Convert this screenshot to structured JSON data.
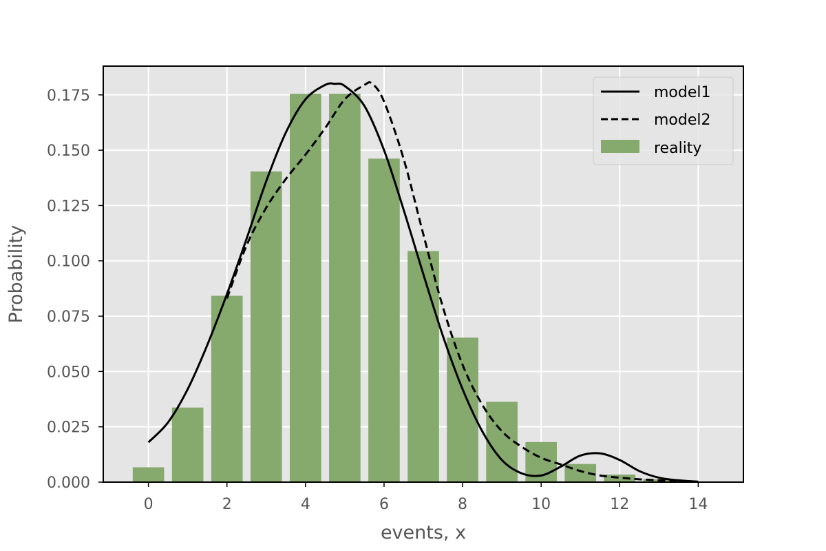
{
  "chart_data": {
    "type": "bar",
    "xlabel": "events, x",
    "ylabel": "Probability",
    "xlim": [
      -1.15,
      15.15
    ],
    "ylim": [
      0,
      0.188
    ],
    "xticks": [
      0,
      2,
      4,
      6,
      8,
      10,
      12,
      14
    ],
    "yticks": [
      0.0,
      0.025,
      0.05,
      0.075,
      0.1,
      0.125,
      0.15,
      0.175
    ],
    "grid": true,
    "legend_position": "top-right",
    "colors": {
      "background": "#e5e5e5",
      "bars": "#86a96e",
      "lines": "#000000",
      "grid": "#ffffff"
    },
    "bars": {
      "name": "reality",
      "x": [
        0,
        1,
        2,
        3,
        4,
        5,
        6,
        7,
        8,
        9,
        10,
        11,
        12,
        13
      ],
      "values": [
        0.0067,
        0.0337,
        0.0842,
        0.1404,
        0.1755,
        0.1755,
        0.1462,
        0.1044,
        0.0653,
        0.0363,
        0.0181,
        0.0082,
        0.0034,
        0.0013
      ]
    },
    "series": [
      {
        "name": "model1",
        "style": "solid",
        "x": [
          0,
          0.5,
          1,
          1.5,
          2,
          2.5,
          3,
          3.5,
          4,
          4.5,
          4.75,
          5,
          5.5,
          6,
          6.5,
          7,
          7.5,
          8,
          8.5,
          9,
          9.5,
          10,
          10.5,
          11,
          11.5,
          12,
          12.5,
          13,
          13.5,
          14
        ],
        "values": [
          0.018,
          0.027,
          0.042,
          0.062,
          0.085,
          0.11,
          0.136,
          0.158,
          0.173,
          0.1795,
          0.18,
          0.179,
          0.17,
          0.15,
          0.123,
          0.094,
          0.066,
          0.042,
          0.023,
          0.01,
          0.004,
          0.003,
          0.007,
          0.012,
          0.013,
          0.01,
          0.005,
          0.002,
          0.0008,
          0.0002
        ]
      },
      {
        "name": "model2",
        "style": "dashed",
        "x": [
          2,
          2.5,
          3,
          3.5,
          4,
          4.5,
          5,
          5.5,
          5.7,
          6,
          6.5,
          7,
          7.5,
          8,
          8.5,
          9,
          9.5,
          10,
          10.5,
          11,
          11.5,
          12,
          12.5,
          13,
          13.5,
          14
        ],
        "values": [
          0.083,
          0.107,
          0.124,
          0.137,
          0.148,
          0.16,
          0.173,
          0.1795,
          0.18,
          0.172,
          0.146,
          0.112,
          0.079,
          0.053,
          0.035,
          0.023,
          0.016,
          0.011,
          0.008,
          0.005,
          0.003,
          0.002,
          0.0013,
          0.0008,
          0.0004,
          0.0002
        ]
      }
    ]
  }
}
